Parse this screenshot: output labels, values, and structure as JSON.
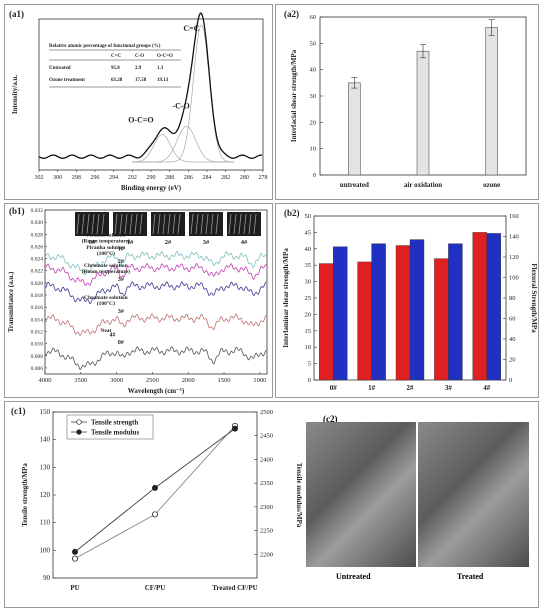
{
  "panel_labels": {
    "a1": "(a1)",
    "a2": "(a2)",
    "b1": "(b1)",
    "b2": "(b2)",
    "c1": "(c1)",
    "c2": "(c2)"
  },
  "chart_data": [
    {
      "id": "a1",
      "type": "line",
      "xlabel": "Binding energy (eV)",
      "ylabel": "Intensity/a.u.",
      "xlim": [
        302,
        278
      ],
      "xticks": [
        "302",
        "300",
        "298",
        "296",
        "294",
        "292",
        "290",
        "288",
        "286",
        "284",
        "282",
        "280",
        "278"
      ],
      "peaks": [
        {
          "label": "C=C",
          "center": 284.6,
          "height": 1.0
        },
        {
          "label": "-C-O",
          "center": 286.2,
          "height": 0.26
        },
        {
          "label": "O-C=O",
          "center": 288.8,
          "height": 0.2
        }
      ],
      "table": {
        "title": "Relative atomic percentage of functional groups (%)",
        "columns": [
          "",
          "C=C",
          "C-O",
          "O-C=O"
        ],
        "rows": [
          [
            "Untreated",
            "95.8",
            "2.9",
            "1.3"
          ],
          [
            "Ozone treatment",
            "63.28",
            "17.58",
            "19.13"
          ]
        ]
      }
    },
    {
      "id": "a2",
      "type": "bar",
      "ylabel": "Interfacial shear strength/MPa",
      "categories": [
        "untreated",
        "air oxidation",
        "ozone"
      ],
      "values": [
        35,
        47,
        56
      ],
      "errors": [
        2,
        2.5,
        3
      ],
      "ylim": [
        0,
        60
      ],
      "yticks": [
        0,
        10,
        20,
        30,
        40,
        50,
        60
      ],
      "color": "#e3e3e3"
    },
    {
      "id": "b1",
      "type": "line",
      "xlabel": "Wavelength (cm⁻¹)",
      "ylabel": "Transmittance (a.u.)",
      "xlim": [
        4000,
        900
      ],
      "xticks": [
        4000,
        3500,
        3000,
        2500,
        2000,
        1500,
        1000
      ],
      "ylim": [
        0.005,
        0.032
      ],
      "yticks": [
        "0.006",
        "0.008",
        "0.010",
        "0.012",
        "0.014",
        "0.016",
        "0.018",
        "0.020",
        "0.022",
        "0.024",
        "0.026",
        "0.028",
        "0.030",
        "0.032"
      ],
      "image_labels": [
        "0#",
        "1#",
        "2#",
        "3#",
        "4#"
      ],
      "series": [
        {
          "label": "1#",
          "note": [
            "Piranha solution",
            "(Room temperature)"
          ],
          "offset": 0.0245,
          "color": "#7fbfbf"
        },
        {
          "label": "2#",
          "note": [
            "Piranha solution",
            "(100°C)"
          ],
          "offset": 0.0225,
          "color": "#c040b0"
        },
        {
          "label": "3#",
          "note": [
            "Chromate solution",
            "(Room temperature)"
          ],
          "offset": 0.0195,
          "color": "#3a3a90"
        },
        {
          "label": "3#",
          "note": [
            "Chromate solution",
            "(100°C)"
          ],
          "offset": 0.0142,
          "color": "#c07070"
        },
        {
          "label": "0#",
          "note": [
            "Neat"
          ],
          "offset": 0.0088,
          "color": "#555555"
        }
      ],
      "extra_label": "4#"
    },
    {
      "id": "b2",
      "type": "bar",
      "ylabel": "Interlaminar shear strength/MPa",
      "ylabel2": "Flexural Strength/MPa",
      "categories": [
        "0#",
        "1#",
        "2#",
        "3#",
        "4#"
      ],
      "series": [
        {
          "axis": "left",
          "values": [
            35.5,
            36,
            41,
            37,
            45
          ],
          "color": "#e02020"
        },
        {
          "axis": "right",
          "values": [
            130,
            133,
            137,
            133,
            143
          ],
          "color": "#2030c0"
        }
      ],
      "ylim": [
        0,
        50
      ],
      "yticks": [
        0,
        5,
        10,
        15,
        20,
        25,
        30,
        35,
        40,
        45,
        50
      ],
      "ylim2": [
        0,
        160
      ],
      "yticks2": [
        0,
        20,
        40,
        60,
        80,
        100,
        120,
        140,
        160
      ]
    },
    {
      "id": "c1",
      "type": "line",
      "ylabel": "Tensile strength/MPa",
      "ylabel2": "Tensile modulus/MPa",
      "categories": [
        "PU",
        "CF/PU",
        "Treated CF/PU"
      ],
      "series": [
        {
          "name": "Tensile strength",
          "axis": "left",
          "values": [
            97,
            113,
            145
          ],
          "marker": "open"
        },
        {
          "name": "Tensile modulus",
          "axis": "right",
          "values": [
            2205,
            2340,
            2465
          ],
          "marker": "filled"
        }
      ],
      "ylim": [
        90,
        150
      ],
      "yticks": [
        90,
        100,
        110,
        120,
        130,
        140,
        150
      ],
      "ylim2": [
        2150,
        2500
      ],
      "yticks2": [
        2200,
        2250,
        2300,
        2350,
        2400,
        2450,
        2500
      ]
    }
  ],
  "c2": {
    "labels": [
      "Untreated",
      "Treated"
    ]
  }
}
